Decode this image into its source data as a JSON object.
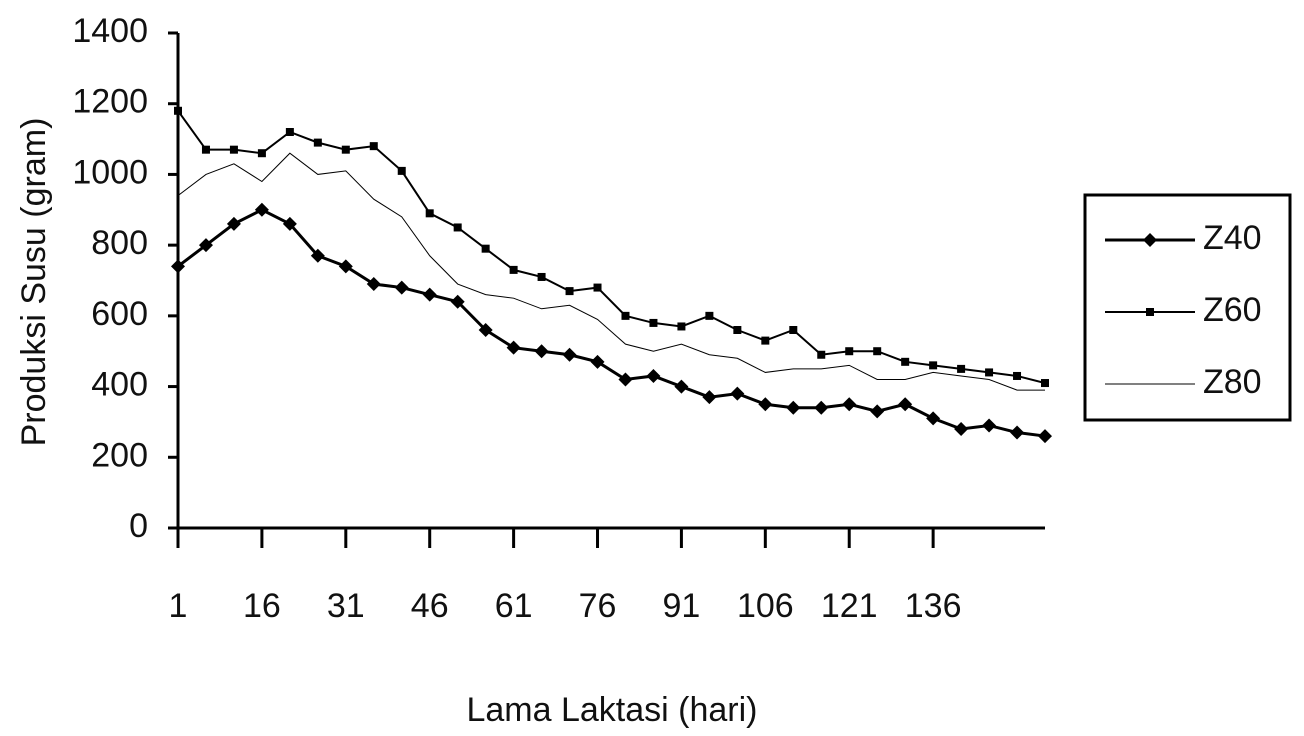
{
  "chart_data": {
    "type": "line",
    "x_label": "Lama Laktasi (hari)",
    "y_label": "Produksi Susu (gram)",
    "x": [
      1,
      6,
      11,
      16,
      21,
      26,
      31,
      36,
      41,
      46,
      51,
      56,
      61,
      66,
      71,
      76,
      81,
      86,
      91,
      96,
      101,
      106,
      111,
      116,
      121,
      126,
      131,
      136,
      141,
      146,
      151,
      156
    ],
    "series": [
      {
        "name": "Z40",
        "color": "#000000",
        "marker": "diamond",
        "values": [
          740,
          800,
          860,
          900,
          860,
          770,
          740,
          690,
          680,
          660,
          640,
          560,
          510,
          500,
          490,
          470,
          420,
          430,
          400,
          370,
          380,
          350,
          340,
          340,
          350,
          330,
          350,
          310,
          280,
          290,
          270,
          260
        ]
      },
      {
        "name": "Z60",
        "color": "#000000",
        "marker": "square",
        "values": [
          1180,
          1070,
          1070,
          1060,
          1120,
          1090,
          1070,
          1080,
          1010,
          890,
          850,
          790,
          730,
          710,
          670,
          680,
          600,
          580,
          570,
          600,
          560,
          530,
          560,
          490,
          500,
          500,
          470,
          460,
          450,
          440,
          430,
          410
        ]
      },
      {
        "name": "Z80",
        "color": "#000000",
        "marker": "none",
        "values": [
          940,
          1000,
          1030,
          980,
          1060,
          1000,
          1010,
          930,
          880,
          770,
          690,
          660,
          650,
          620,
          630,
          590,
          520,
          500,
          520,
          490,
          480,
          440,
          450,
          450,
          460,
          420,
          420,
          440,
          430,
          420,
          390,
          390
        ]
      }
    ],
    "xlim": [
      1,
      156
    ],
    "xticks": [
      1,
      16,
      31,
      46,
      61,
      76,
      91,
      106,
      121,
      136
    ],
    "ylim": [
      0,
      1400
    ],
    "yticks": [
      0,
      200,
      400,
      600,
      800,
      1000,
      1200,
      1400
    ],
    "legend": "right"
  }
}
